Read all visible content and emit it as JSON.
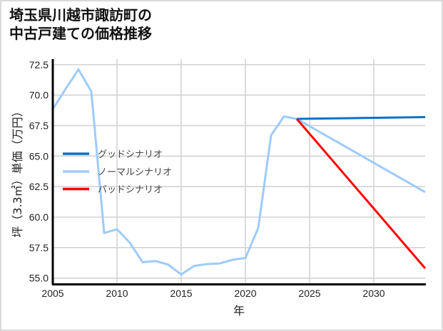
{
  "title": {
    "line1": "埼玉県川越市諏訪町の",
    "line2": "中古戸建ての価格推移"
  },
  "colors": {
    "good": "#0a72c8",
    "normal": "#9ecbfa",
    "bad": "#ff0000",
    "grid": "#d3d3d3",
    "axis": "#000000"
  },
  "chart_data": {
    "type": "line",
    "title": "埼玉県川越市諏訪町の中古戸建ての価格推移",
    "xlabel": "年",
    "ylabel": "坪（3.3㎡）単価（万円）",
    "xlim": [
      2005,
      2034
    ],
    "ylim": [
      54.5,
      72.9
    ],
    "xticks": [
      2005,
      2010,
      2015,
      2020,
      2025,
      2030
    ],
    "yticks": [
      55.0,
      57.5,
      60.0,
      62.5,
      65.0,
      67.5,
      70.0,
      72.5
    ],
    "ytick_labels": [
      "55.0",
      "57.5",
      "60.0",
      "62.5",
      "65.0",
      "67.5",
      "70.0",
      "72.5"
    ],
    "grid": true,
    "legend_position": "center-left",
    "series": [
      {
        "name": "グッドシナリオ",
        "key": "good",
        "x": [
          2024,
          2034
        ],
        "values": [
          68.05,
          68.2
        ]
      },
      {
        "name": "ノーマルシナリオ",
        "key": "normal",
        "x": [
          2005,
          2006,
          2007,
          2008,
          2009,
          2010,
          2011,
          2012,
          2013,
          2014,
          2015,
          2016,
          2017,
          2018,
          2019,
          2020,
          2021,
          2022,
          2023,
          2024,
          2034
        ],
        "values": [
          68.85,
          70.5,
          72.1,
          70.3,
          58.7,
          59.0,
          57.9,
          56.3,
          56.4,
          56.1,
          55.3,
          56.0,
          56.15,
          56.2,
          56.5,
          56.65,
          59.1,
          66.7,
          68.25,
          68.05,
          62.05
        ]
      },
      {
        "name": "バッドシナリオ",
        "key": "bad",
        "x": [
          2024,
          2034
        ],
        "values": [
          68.05,
          55.8
        ]
      }
    ]
  }
}
